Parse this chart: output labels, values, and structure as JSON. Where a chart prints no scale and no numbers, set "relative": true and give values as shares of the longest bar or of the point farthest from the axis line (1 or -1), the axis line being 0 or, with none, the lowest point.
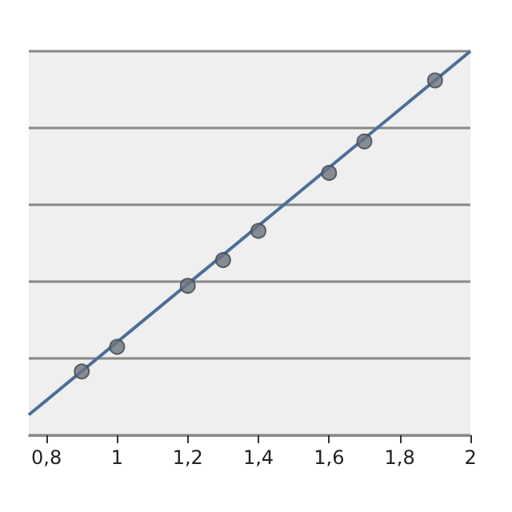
{
  "chart_data": {
    "type": "scatter",
    "relative": true,
    "grid": "y",
    "xlim": [
      0.75,
      2.0
    ],
    "xticks": [
      {
        "value": 0.8,
        "label": "0,8"
      },
      1,
      {
        "value": 1.2,
        "label": "1,2"
      },
      {
        "value": 1.4,
        "label": "1,4"
      },
      {
        "value": 1.6,
        "label": "1,6"
      },
      {
        "value": 1.8,
        "label": "1,8"
      },
      2
    ],
    "series": [
      {
        "type": "line",
        "color": "#4a6f99",
        "marker": "none",
        "x": [
          0.75,
          2.0
        ],
        "values": [
          0.053,
          1
        ]
      },
      {
        "color": "#6b7380",
        "marker": "circle",
        "x": [
          0.9,
          1.0,
          1.2,
          1.3,
          1.4,
          1.6,
          1.7,
          1.9
        ],
        "values": [
          0.166,
          0.23,
          0.389,
          0.456,
          0.532,
          0.683,
          0.765,
          0.924
        ]
      }
    ]
  }
}
